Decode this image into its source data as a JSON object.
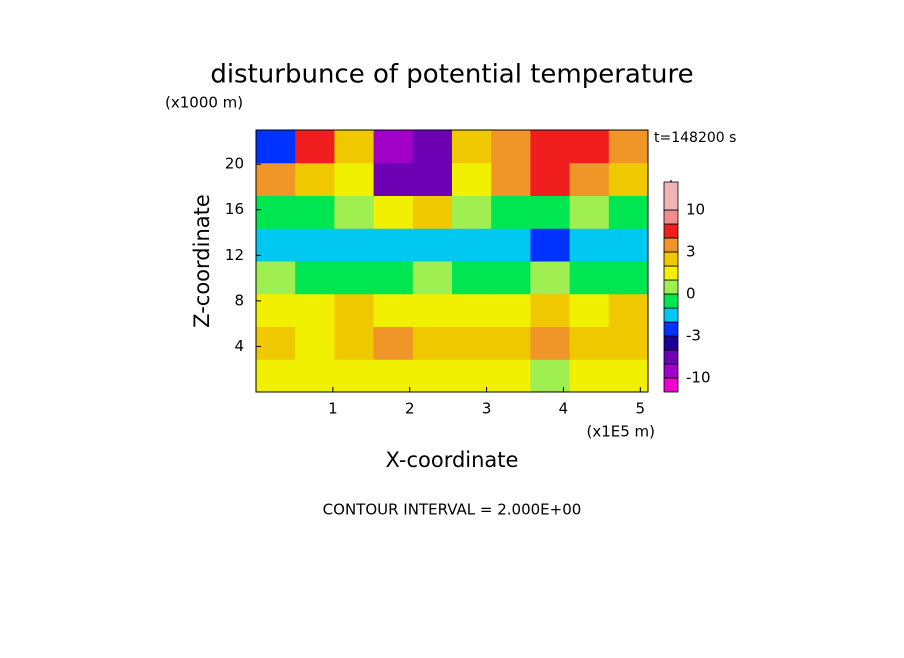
{
  "chart_data": {
    "type": "contour",
    "title": "disturbunce of potential temperature",
    "y_unit_label": "(x1000 m)",
    "x_unit_label": "(x1E5 m)",
    "time_label": "t=148200 s",
    "xlabel": "X-coordinate",
    "ylabel": "Z-coordinate",
    "footer": "CONTOUR INTERVAL = 2.000E+00",
    "xlim": [
      0,
      5.1
    ],
    "ylim": [
      0,
      23
    ],
    "xticks": [
      1,
      2,
      3,
      4,
      5
    ],
    "yticks": [
      4,
      8,
      12,
      16,
      20
    ],
    "levels": [
      -10,
      -7,
      -5,
      -3,
      -2,
      -1,
      0,
      1,
      2,
      3,
      5,
      7,
      10
    ],
    "colors": [
      "#f000d0",
      "#a000c8",
      "#6e00b4",
      "#1e0096",
      "#0032ff",
      "#00c8f0",
      "#00e650",
      "#a0ef50",
      "#f0f000",
      "#f0c800",
      "#f09628",
      "#f01e1e",
      "#f08c8c",
      "#f0b4b4"
    ],
    "colorbar_ticks": [
      10,
      3,
      0,
      -3,
      -10
    ],
    "values": [
      [
        1.5,
        1.5,
        1.5,
        1.5,
        1.5,
        1.5,
        1.5,
        0.5,
        1.5,
        1.5
      ],
      [
        2.5,
        1.5,
        2.5,
        3.5,
        2.5,
        2.5,
        2.5,
        3.5,
        2.5,
        2.5
      ],
      [
        1.5,
        1.5,
        2.5,
        1.5,
        1.5,
        1.5,
        1.5,
        2.5,
        1.5,
        2.5
      ],
      [
        0.5,
        -0.5,
        -0.5,
        -0.5,
        0.5,
        -0.5,
        -0.5,
        0.5,
        -0.5,
        -0.5
      ],
      [
        -1.5,
        -1.5,
        -1.5,
        -1.5,
        -1.5,
        -1.5,
        -1.5,
        -2.5,
        -1.5,
        -1.5
      ],
      [
        -0.5,
        -0.5,
        0.5,
        1.5,
        2.5,
        0.5,
        -0.5,
        -0.5,
        0.5,
        -0.5
      ],
      [
        4,
        2.5,
        1.5,
        -6,
        -6,
        1.5,
        4,
        6,
        4,
        2.5
      ],
      [
        -2.5,
        6,
        2.5,
        -8,
        -6,
        2.5,
        4,
        6,
        6,
        4
      ]
    ]
  }
}
